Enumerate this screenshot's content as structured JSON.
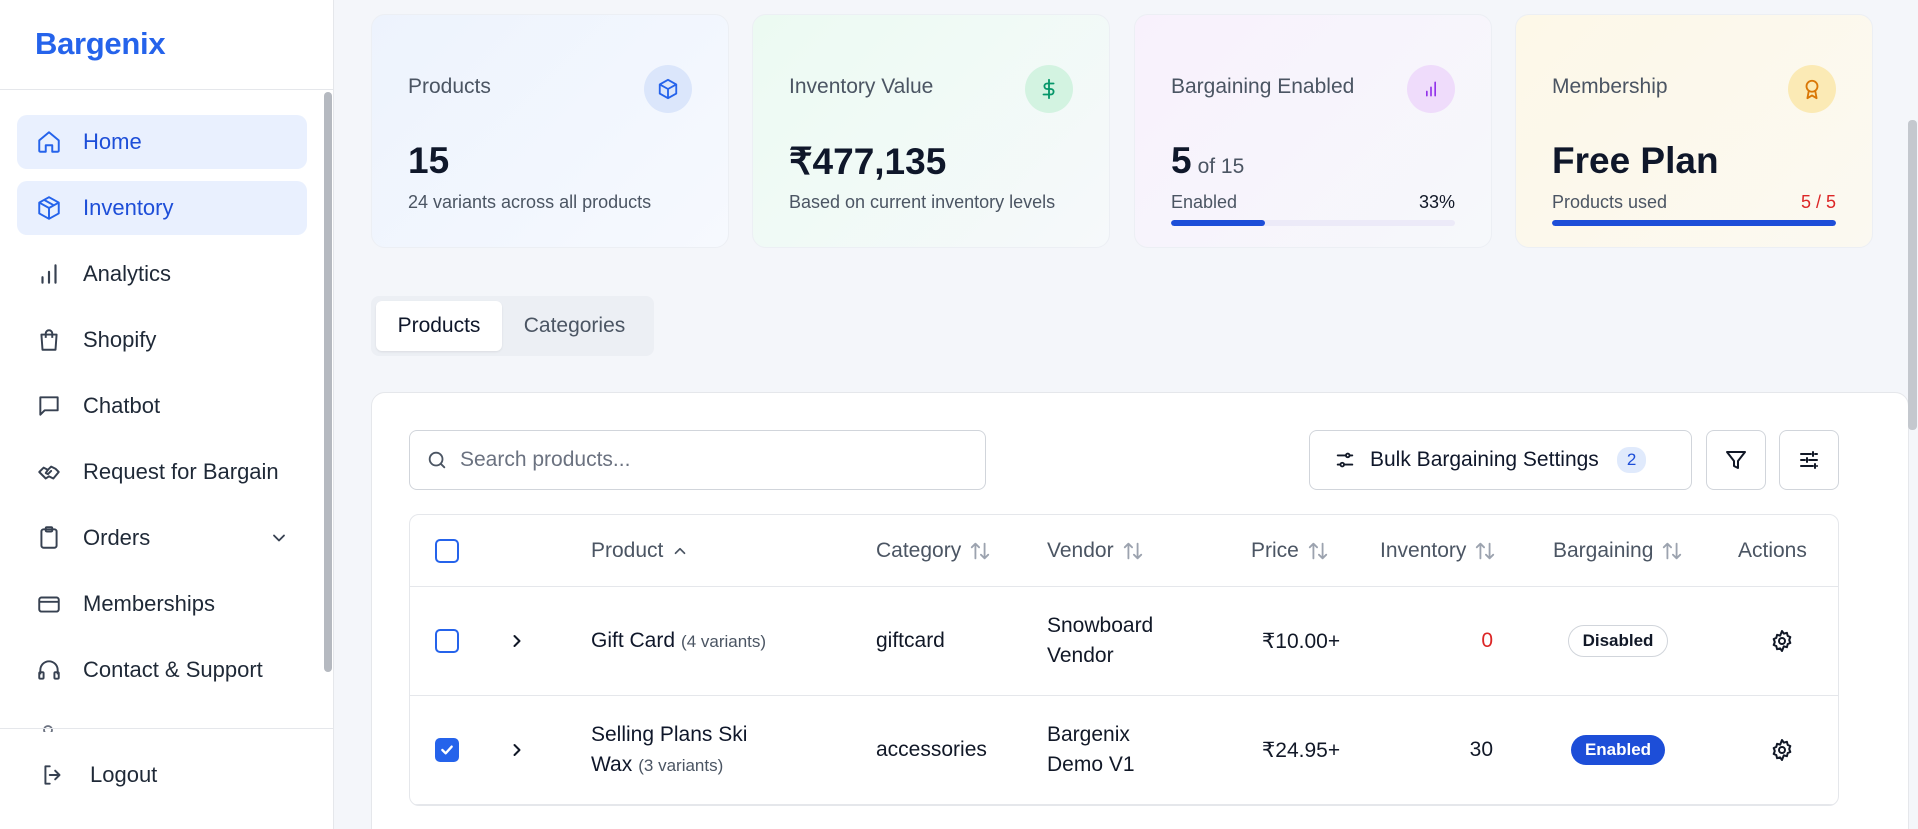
{
  "app": {
    "brand": "Bargenix"
  },
  "sidebar": {
    "items": [
      {
        "label": "Home",
        "icon": "home-icon",
        "active": true
      },
      {
        "label": "Inventory",
        "icon": "box-icon",
        "active": true
      },
      {
        "label": "Analytics",
        "icon": "bar-chart-icon",
        "active": false
      },
      {
        "label": "Shopify",
        "icon": "shopping-bag-icon",
        "active": false
      },
      {
        "label": "Chatbot",
        "icon": "chat-icon",
        "active": false
      },
      {
        "label": "Request for Bargain",
        "icon": "handshake-icon",
        "active": false
      },
      {
        "label": "Orders",
        "icon": "clipboard-icon",
        "active": false
      },
      {
        "label": "Memberships",
        "icon": "credit-card-icon",
        "active": false
      },
      {
        "label": "Contact & Support",
        "icon": "headphones-icon",
        "active": false
      }
    ],
    "logout_label": "Logout"
  },
  "stats": {
    "products": {
      "title": "Products",
      "value": "15",
      "sub": "24 variants across all products",
      "icon": "cube-icon",
      "icon_color": "#2563eb",
      "icon_bg": "#dbe6fb"
    },
    "inventory_value": {
      "title": "Inventory Value",
      "value": "₹477,135",
      "sub": "Based on current inventory levels",
      "icon": "dollar-icon",
      "icon_color": "#059669",
      "icon_bg": "#d3f3e1"
    },
    "bargaining": {
      "title": "Bargaining Enabled",
      "value": "5",
      "of": "of 15",
      "sub": "Enabled",
      "percent_label": "33%",
      "progress": 0.33,
      "icon": "bar-chart-icon",
      "icon_color": "#9333ea",
      "icon_bg": "#efdcfb"
    },
    "membership": {
      "title": "Membership",
      "value": "Free Plan",
      "sub": "Products used",
      "usage_label": "5 / 5",
      "usage_color": "#dc2626",
      "progress": 1.0,
      "icon": "award-icon",
      "icon_color": "#d97706",
      "icon_bg": "#fbeab5"
    }
  },
  "tabs": [
    {
      "label": "Products",
      "active": true
    },
    {
      "label": "Categories",
      "active": false
    }
  ],
  "search": {
    "placeholder": "Search products...",
    "value": ""
  },
  "toolbar": {
    "bulk_label": "Bulk Bargaining Settings",
    "bulk_count": "2"
  },
  "table": {
    "columns": {
      "product": "Product",
      "category": "Category",
      "vendor": "Vendor",
      "price": "Price",
      "inventory": "Inventory",
      "bargaining": "Bargaining",
      "actions": "Actions"
    },
    "rows": [
      {
        "checked": false,
        "name": "Gift Card",
        "variants": "(4 variants)",
        "category": "giftcard",
        "vendor": "Snowboard Vendor",
        "price": "₹10.00+",
        "inventory": "0",
        "inventory_color": "#dc2626",
        "status": "Disabled"
      },
      {
        "checked": true,
        "name": "Selling Plans Ski Wax",
        "variants": "(3 variants)",
        "category": "accessories",
        "vendor": "Bargenix Demo V1",
        "price": "₹24.95+",
        "inventory": "30",
        "inventory_color": "#111827",
        "status": "Enabled"
      }
    ]
  }
}
